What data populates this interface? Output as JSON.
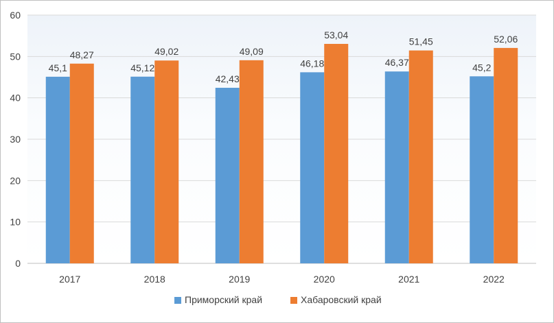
{
  "chart_data": {
    "type": "bar",
    "title": "",
    "xlabel": "",
    "ylabel": "",
    "categories": [
      "2017",
      "2018",
      "2019",
      "2020",
      "2021",
      "2022"
    ],
    "series": [
      {
        "name": "Приморский край",
        "values": [
          45.1,
          45.12,
          42.43,
          46.18,
          46.37,
          45.2
        ],
        "labels": [
          "45,1",
          "45,12",
          "42,43",
          "46,18",
          "46,37",
          "45,2"
        ],
        "color": "#5b9bd5"
      },
      {
        "name": "Хабаровский край",
        "values": [
          48.27,
          49.02,
          49.09,
          53.04,
          51.45,
          52.06
        ],
        "labels": [
          "48,27",
          "49,02",
          "49,09",
          "53,04",
          "51,45",
          "52,06"
        ],
        "color": "#ed7d31"
      }
    ],
    "ylim": [
      0,
      60
    ],
    "yticks": [
      "0",
      "10",
      "20",
      "30",
      "40",
      "50",
      "60"
    ],
    "grid": true,
    "legend_position": "bottom"
  }
}
